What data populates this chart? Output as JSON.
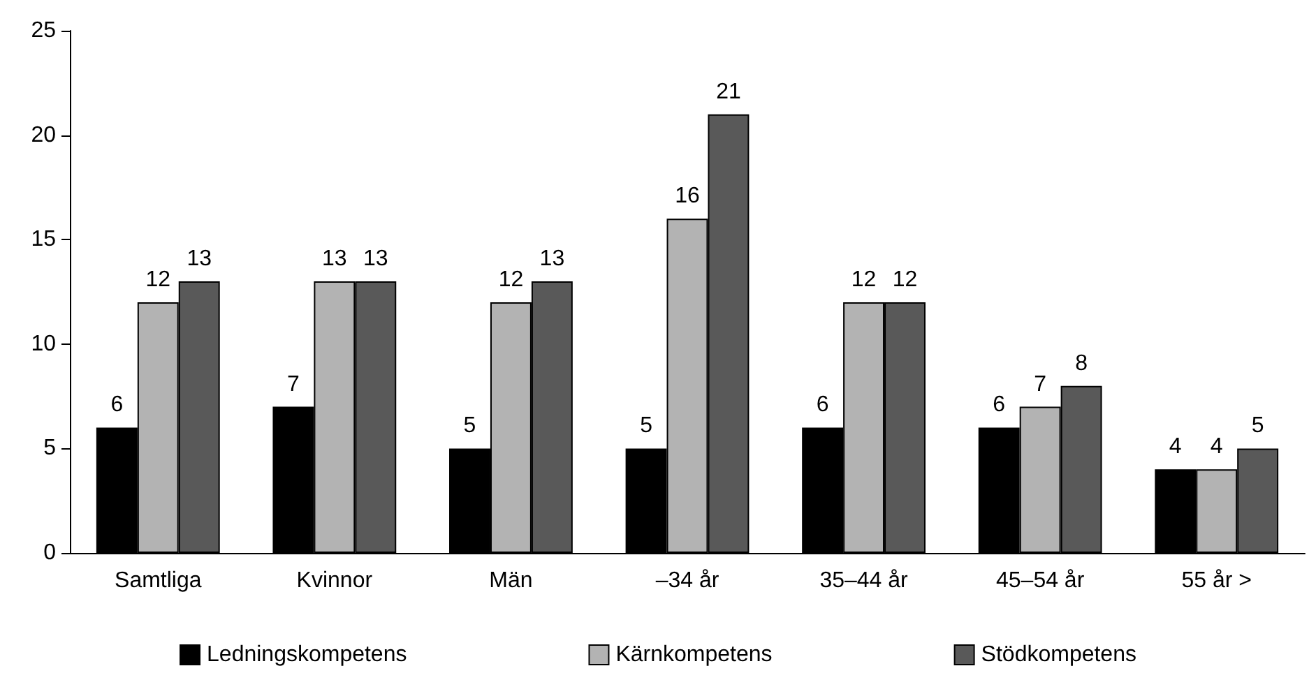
{
  "chart_data": {
    "type": "bar",
    "categories": [
      "Samtliga",
      "Kvinnor",
      "Män",
      "–34 år",
      "35–44 år",
      "45–54 år",
      "55 år >"
    ],
    "series": [
      {
        "name": "Ledningskompetens",
        "color": "#000000",
        "values": [
          6,
          7,
          5,
          5,
          6,
          6,
          4
        ]
      },
      {
        "name": "Kärnkompetens",
        "color": "#b3b3b3",
        "values": [
          12,
          13,
          12,
          16,
          12,
          7,
          4
        ]
      },
      {
        "name": "Stödkompetens",
        "color": "#595959",
        "values": [
          13,
          13,
          13,
          21,
          12,
          8,
          5
        ]
      }
    ],
    "ylim": [
      0,
      25
    ],
    "yticks": [
      0,
      5,
      10,
      15,
      20,
      25
    ],
    "grid": false,
    "legend": "bottom",
    "data_labels": true
  }
}
